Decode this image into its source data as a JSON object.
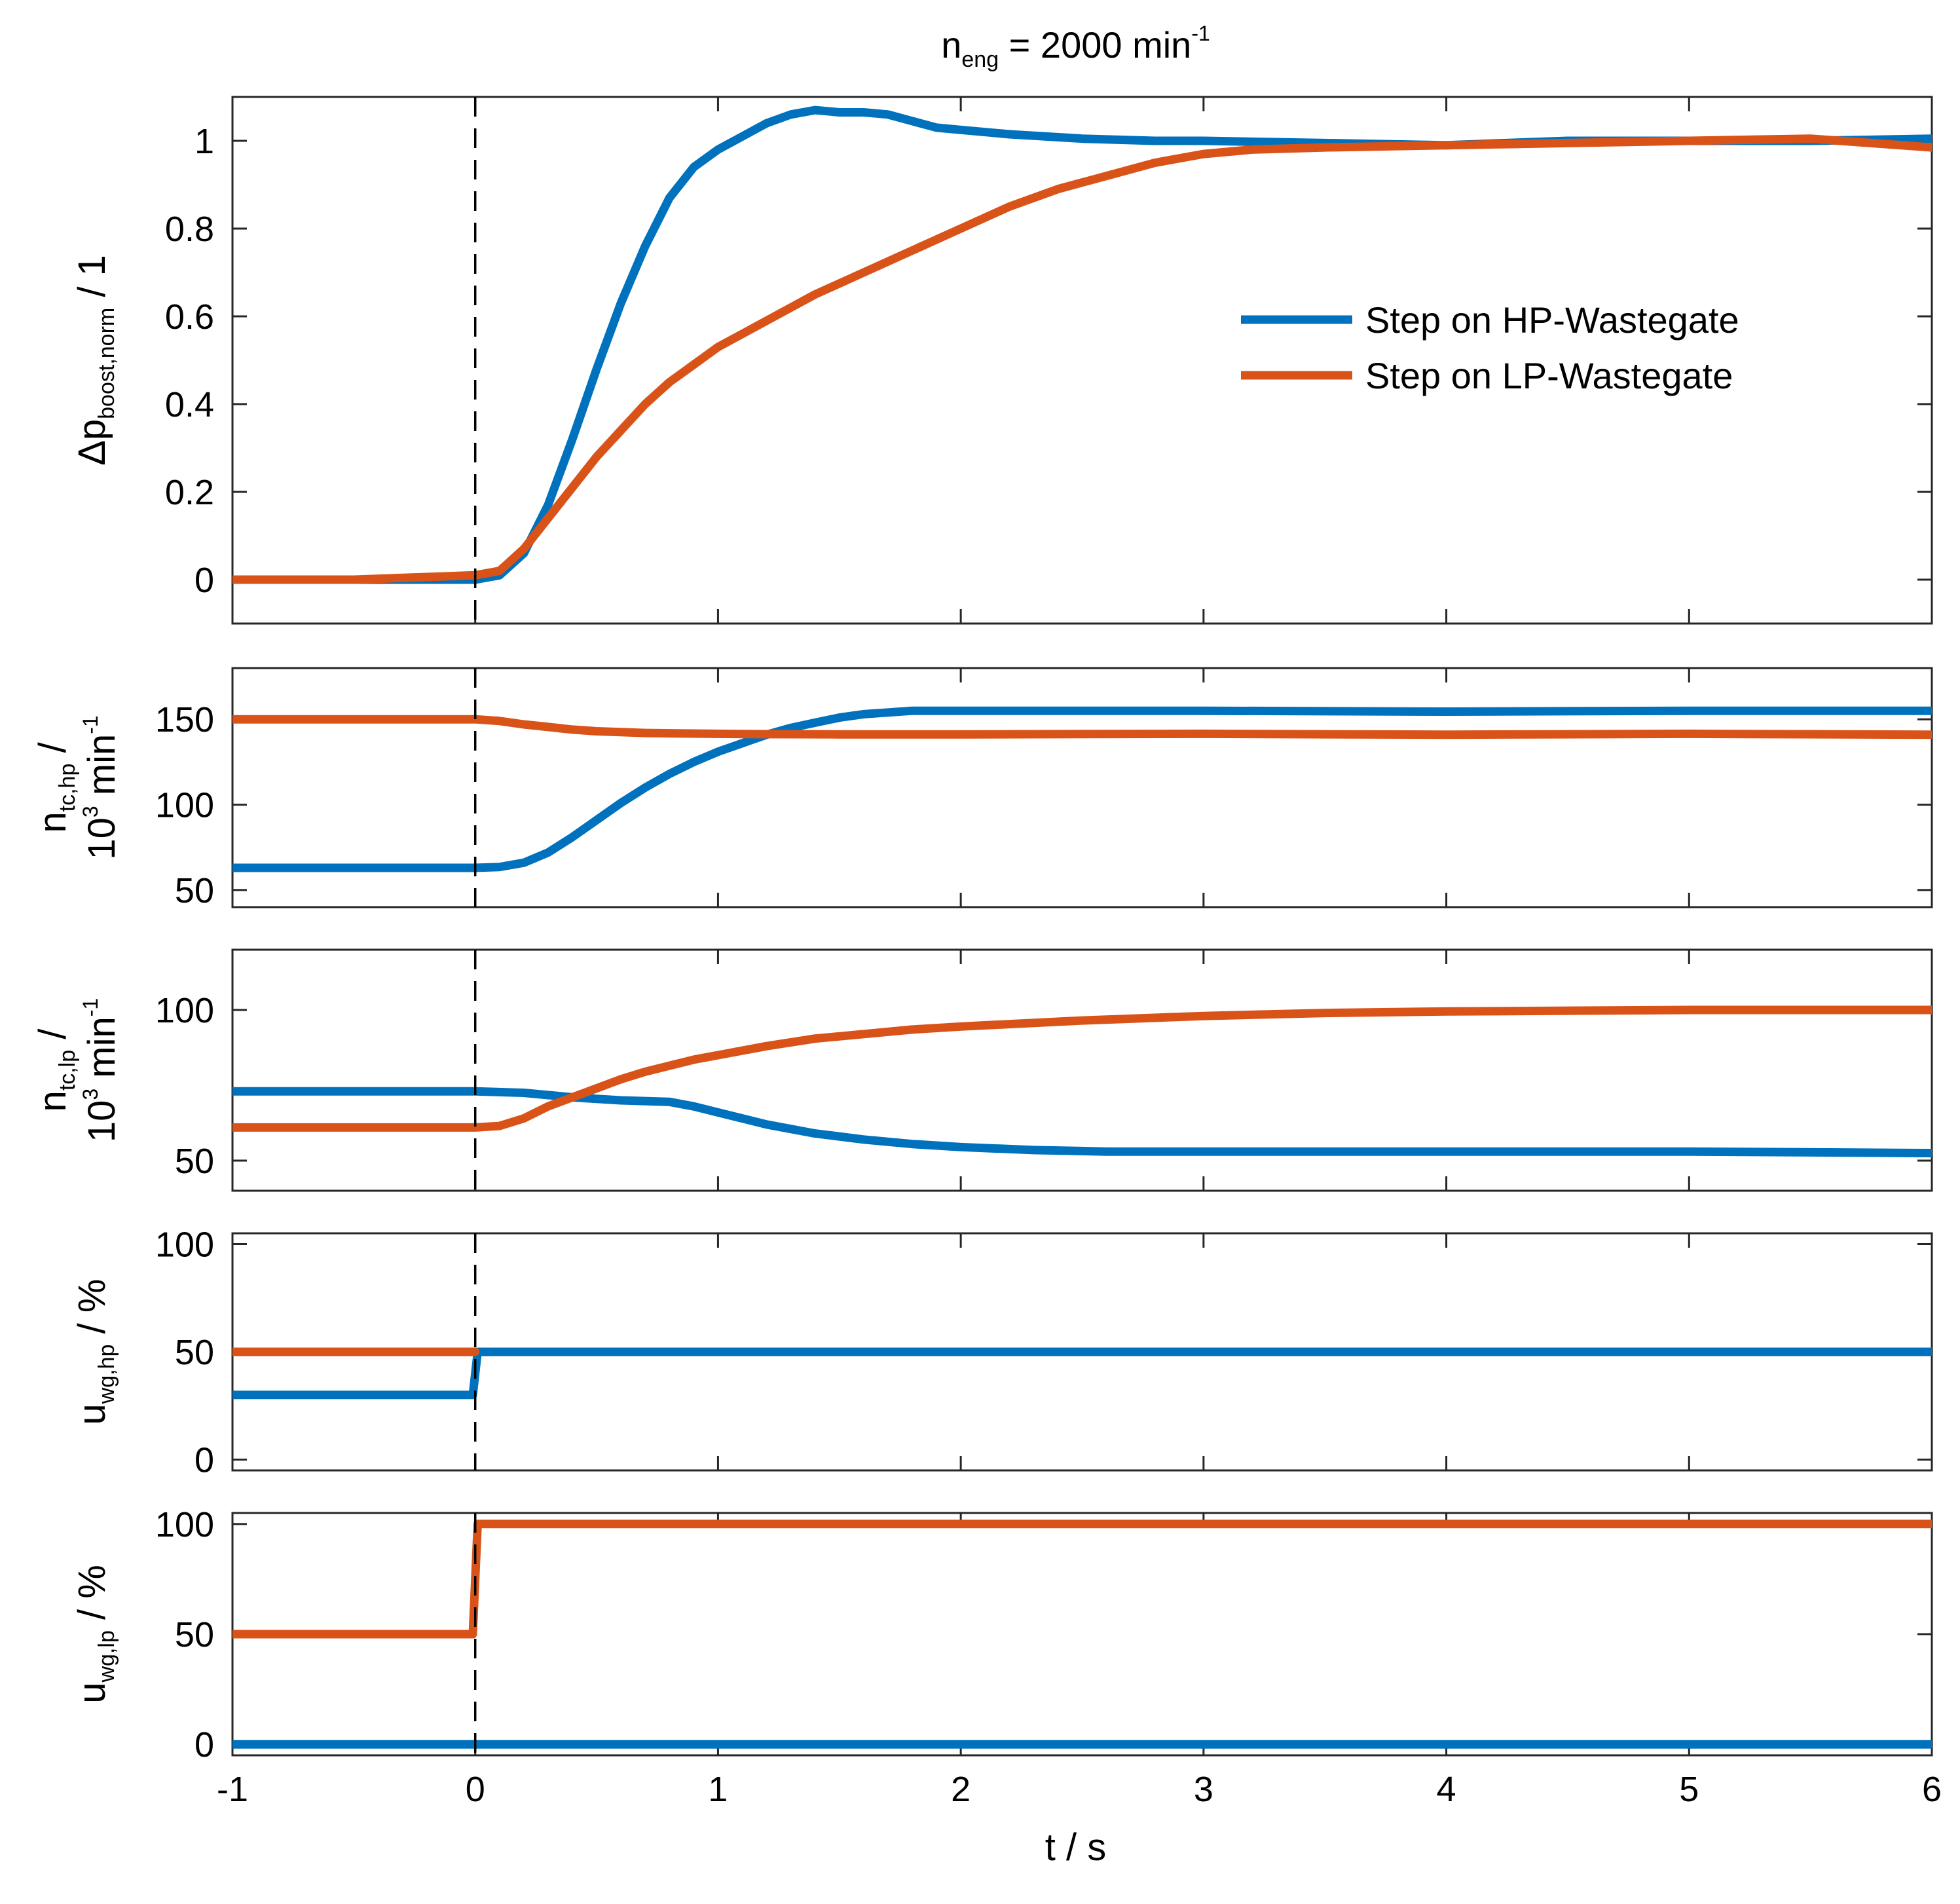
{
  "chart_data": {
    "type": "line",
    "title": {
      "base": "n",
      "sub": "eng",
      "rest": " = 2000 min",
      "sup": "-1"
    },
    "xlabel": "t / s",
    "xlim": [
      -1,
      6
    ],
    "xticks": [
      -1,
      0,
      1,
      2,
      3,
      4,
      5,
      6
    ],
    "xtick_labels": [
      "-1",
      "0",
      "1",
      "2",
      "3",
      "4",
      "5",
      "6"
    ],
    "step_time": 0,
    "colors": {
      "hp": "#0072BD",
      "lp": "#D95319"
    },
    "legend": {
      "placement": "right-center of top panel",
      "entries": [
        "Step on HP-Wastegate",
        "Step on LP-Wastegate"
      ]
    },
    "panels": [
      {
        "id": "boost",
        "ylabel_parts": [
          [
            "Δp",
            "n"
          ],
          [
            "boost,norm",
            "sub"
          ],
          [
            " / 1",
            "n"
          ]
        ],
        "ylim": [
          -0.1,
          1.1
        ],
        "yticks": [
          0,
          0.2,
          0.4,
          0.6,
          0.8,
          1
        ],
        "ytick_labels": [
          "0",
          "0.2",
          "0.4",
          "0.6",
          "0.8",
          "1"
        ],
        "series": [
          {
            "name": "Step on HP-Wastegate",
            "color": "#0072BD",
            "x": [
              -1,
              -0.5,
              0,
              0.1,
              0.2,
              0.3,
              0.4,
              0.5,
              0.6,
              0.7,
              0.8,
              0.9,
              1.0,
              1.1,
              1.2,
              1.3,
              1.4,
              1.5,
              1.6,
              1.7,
              1.8,
              1.9,
              2.0,
              2.2,
              2.5,
              2.8,
              3.0,
              3.5,
              4.0,
              4.5,
              5.0,
              5.5,
              6.0
            ],
            "y": [
              0,
              0,
              0,
              0.01,
              0.06,
              0.17,
              0.32,
              0.48,
              0.63,
              0.76,
              0.87,
              0.94,
              0.98,
              1.01,
              1.04,
              1.06,
              1.07,
              1.065,
              1.065,
              1.06,
              1.045,
              1.03,
              1.025,
              1.015,
              1.005,
              1.0,
              1.0,
              0.995,
              0.99,
              1.0,
              1.0,
              1.0,
              1.005
            ]
          },
          {
            "name": "Step on LP-Wastegate",
            "color": "#D95319",
            "x": [
              -1,
              -0.5,
              0,
              0.1,
              0.2,
              0.3,
              0.4,
              0.5,
              0.6,
              0.7,
              0.8,
              0.9,
              1.0,
              1.2,
              1.4,
              1.6,
              1.8,
              2.0,
              2.2,
              2.4,
              2.6,
              2.8,
              3.0,
              3.2,
              3.5,
              4.0,
              4.5,
              5.0,
              5.5,
              6.0
            ],
            "y": [
              0,
              0,
              0.01,
              0.02,
              0.07,
              0.14,
              0.21,
              0.28,
              0.34,
              0.4,
              0.45,
              0.49,
              0.53,
              0.59,
              0.65,
              0.7,
              0.75,
              0.8,
              0.85,
              0.89,
              0.92,
              0.95,
              0.97,
              0.98,
              0.985,
              0.99,
              0.995,
              1.0,
              1.005,
              0.985
            ]
          }
        ]
      },
      {
        "id": "ntc_hp",
        "ylabel_line1": [
          [
            "n",
            "n"
          ],
          [
            "tc,hp",
            "sub"
          ],
          [
            " /",
            "n"
          ]
        ],
        "ylabel_line2": [
          [
            "10",
            "n"
          ],
          [
            "3",
            "sup"
          ],
          [
            " min",
            "n"
          ],
          [
            "-1",
            "sup"
          ]
        ],
        "ylim": [
          40,
          180
        ],
        "yticks": [
          50,
          100,
          150
        ],
        "ytick_labels": [
          "50",
          "100",
          "150"
        ],
        "series": [
          {
            "name": "Step on HP-Wastegate",
            "color": "#0072BD",
            "x": [
              -1,
              0,
              0.1,
              0.2,
              0.3,
              0.4,
              0.5,
              0.6,
              0.7,
              0.8,
              0.9,
              1.0,
              1.1,
              1.2,
              1.3,
              1.4,
              1.5,
              1.6,
              1.7,
              1.8,
              2.0,
              2.5,
              3.0,
              4.0,
              5.0,
              6.0
            ],
            "y": [
              63,
              63,
              63.5,
              66,
              72,
              81,
              91,
              101,
              110,
              118,
              125,
              131,
              136,
              141,
              145,
              148,
              151,
              153,
              154,
              155,
              155,
              155,
              155,
              154.5,
              155,
              155
            ]
          },
          {
            "name": "Step on LP-Wastegate",
            "color": "#D95319",
            "x": [
              -1,
              0,
              0.1,
              0.2,
              0.3,
              0.4,
              0.5,
              0.6,
              0.7,
              0.8,
              1.0,
              1.2,
              1.5,
              2.0,
              3.0,
              4.0,
              5.0,
              6.0
            ],
            "y": [
              150,
              150,
              149,
              147,
              145.5,
              144,
              143,
              142.5,
              142,
              141.8,
              141.5,
              141.3,
              141.2,
              141.2,
              141.5,
              141,
              141.5,
              141
            ]
          }
        ]
      },
      {
        "id": "ntc_lp",
        "ylabel_line1": [
          [
            "n",
            "n"
          ],
          [
            "tc,lp",
            "sub"
          ],
          [
            " /",
            "n"
          ]
        ],
        "ylabel_line2": [
          [
            "10",
            "n"
          ],
          [
            "3",
            "sup"
          ],
          [
            " min",
            "n"
          ],
          [
            "-1",
            "sup"
          ]
        ],
        "ylim": [
          40,
          120
        ],
        "yticks": [
          50,
          100
        ],
        "ytick_labels": [
          "50",
          "100"
        ],
        "series": [
          {
            "name": "Step on HP-Wastegate",
            "color": "#0072BD",
            "x": [
              -1,
              0,
              0.2,
              0.4,
              0.6,
              0.8,
              0.9,
              1.0,
              1.2,
              1.4,
              1.6,
              1.8,
              2.0,
              2.3,
              2.6,
              3.0,
              4.0,
              5.0,
              6.0
            ],
            "y": [
              73,
              73,
              72.5,
              71,
              70,
              69.5,
              68,
              66,
              62,
              59,
              57,
              55.5,
              54.5,
              53.5,
              53,
              53,
              53,
              53,
              52.5
            ]
          },
          {
            "name": "Step on LP-Wastegate",
            "color": "#D95319",
            "x": [
              -1,
              0,
              0.1,
              0.2,
              0.3,
              0.4,
              0.5,
              0.6,
              0.7,
              0.8,
              0.9,
              1.0,
              1.2,
              1.4,
              1.6,
              1.8,
              2.0,
              2.5,
              3.0,
              3.5,
              4.0,
              5.0,
              6.0
            ],
            "y": [
              61,
              61,
              61.5,
              64,
              68,
              71,
              74,
              77,
              79.5,
              81.5,
              83.5,
              85,
              88,
              90.5,
              92,
              93.5,
              94.5,
              96.5,
              98,
              99,
              99.5,
              100,
              100
            ]
          }
        ]
      },
      {
        "id": "uwg_hp",
        "ylabel_parts": [
          [
            "u",
            "n"
          ],
          [
            "wg,hp",
            "sub"
          ],
          [
            " / %",
            "n"
          ]
        ],
        "ylim": [
          -5,
          105
        ],
        "yticks": [
          0,
          50,
          100
        ],
        "ytick_labels": [
          "0",
          "50",
          "100"
        ],
        "series": [
          {
            "name": "Step on HP-Wastegate",
            "color": "#0072BD",
            "x": [
              -1,
              -0.01,
              0.01,
              6
            ],
            "y": [
              30,
              30,
              50,
              50
            ]
          },
          {
            "name": "Step on LP-Wastegate",
            "color": "#D95319",
            "x": [
              -1,
              0
            ],
            "y": [
              50,
              50
            ]
          }
        ]
      },
      {
        "id": "uwg_lp",
        "ylabel_parts": [
          [
            "u",
            "n"
          ],
          [
            "wg,lp",
            "sub"
          ],
          [
            " / %",
            "n"
          ]
        ],
        "ylim": [
          -5,
          105
        ],
        "yticks": [
          0,
          50,
          100
        ],
        "ytick_labels": [
          "0",
          "50",
          "100"
        ],
        "series": [
          {
            "name": "Step on HP-Wastegate",
            "color": "#0072BD",
            "x": [
              -1,
              6
            ],
            "y": [
              0,
              0
            ]
          },
          {
            "name": "Step on LP-Wastegate",
            "color": "#D95319",
            "x": [
              -1,
              -0.01,
              0.01,
              6
            ],
            "y": [
              50,
              50,
              100,
              100
            ]
          }
        ]
      }
    ]
  }
}
